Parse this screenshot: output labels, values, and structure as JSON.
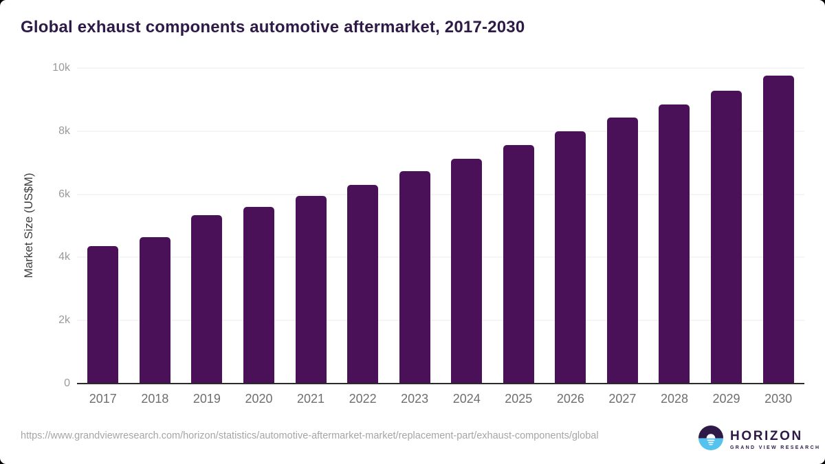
{
  "page": {
    "title": "Global exhaust components automotive aftermarket, 2017-2030"
  },
  "chart_data": {
    "type": "bar",
    "title": "Global exhaust components automotive aftermarket, 2017-2030",
    "categories": [
      "2017",
      "2018",
      "2019",
      "2020",
      "2021",
      "2022",
      "2023",
      "2024",
      "2025",
      "2026",
      "2027",
      "2028",
      "2029",
      "2030"
    ],
    "values": [
      4360,
      4630,
      5330,
      5600,
      5950,
      6300,
      6730,
      7130,
      7550,
      7990,
      8430,
      8840,
      9290,
      9760
    ],
    "xlabel": "",
    "ylabel": "Market Size (US$M)",
    "ylim": [
      0,
      10000
    ],
    "yticks": [
      {
        "value": 0,
        "label": "0"
      },
      {
        "value": 2000,
        "label": "2k"
      },
      {
        "value": 4000,
        "label": "4k"
      },
      {
        "value": 6000,
        "label": "6k"
      },
      {
        "value": 8000,
        "label": "8k"
      },
      {
        "value": 10000,
        "label": "10k"
      }
    ],
    "grid": true,
    "legend": false,
    "bar_color": "#4a1159"
  },
  "footer": {
    "source_url": "https://www.grandviewresearch.com/horizon/statistics/automotive-aftermarket-market/replacement-part/exhaust-components/global",
    "logo": {
      "name": "HORIZON",
      "tagline": "GRAND VIEW RESEARCH"
    }
  },
  "colors": {
    "title_text": "#2e1a47",
    "bar": "#4a1159",
    "axis_line": "#2b2b2b",
    "gridline": "#ebebeb",
    "y_tick_label": "#9a9a9a",
    "x_tick_label": "#6e6e6e",
    "url_text": "#a5a5a5",
    "logo_purple": "#2e1a47",
    "logo_blue": "#56c2ee"
  }
}
